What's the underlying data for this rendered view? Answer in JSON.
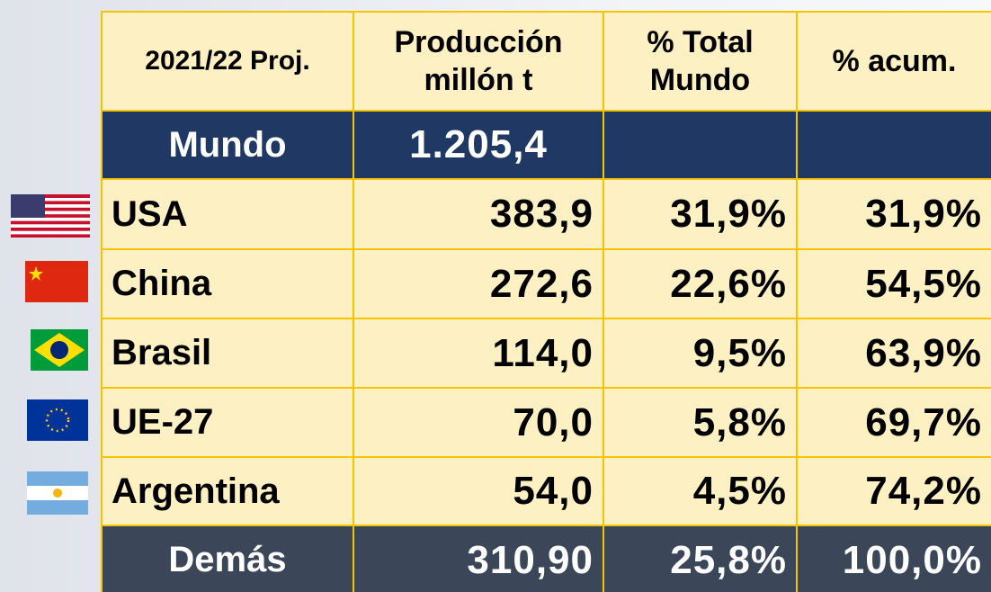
{
  "table": {
    "header": [
      "2021/22 Proj.",
      "Producción millón t",
      "% Total Mundo",
      "% acum."
    ],
    "rows": [
      [
        "Mundo",
        "1.205,4"
      ],
      [
        "USA",
        "383,9",
        "31,9%",
        "31,9%"
      ],
      [
        "China",
        "272,6",
        "22,6%",
        "54,5%"
      ],
      [
        "Brasil",
        "114,0",
        "9,5%",
        "63,9%"
      ],
      [
        "UE-27",
        "70,0",
        "5,8%",
        "69,7%"
      ],
      [
        "Argentina",
        "54,0",
        "4,5%",
        "74,2%"
      ],
      [
        "Demás",
        "310,90",
        "25,8%",
        "100,0%"
      ]
    ]
  }
}
